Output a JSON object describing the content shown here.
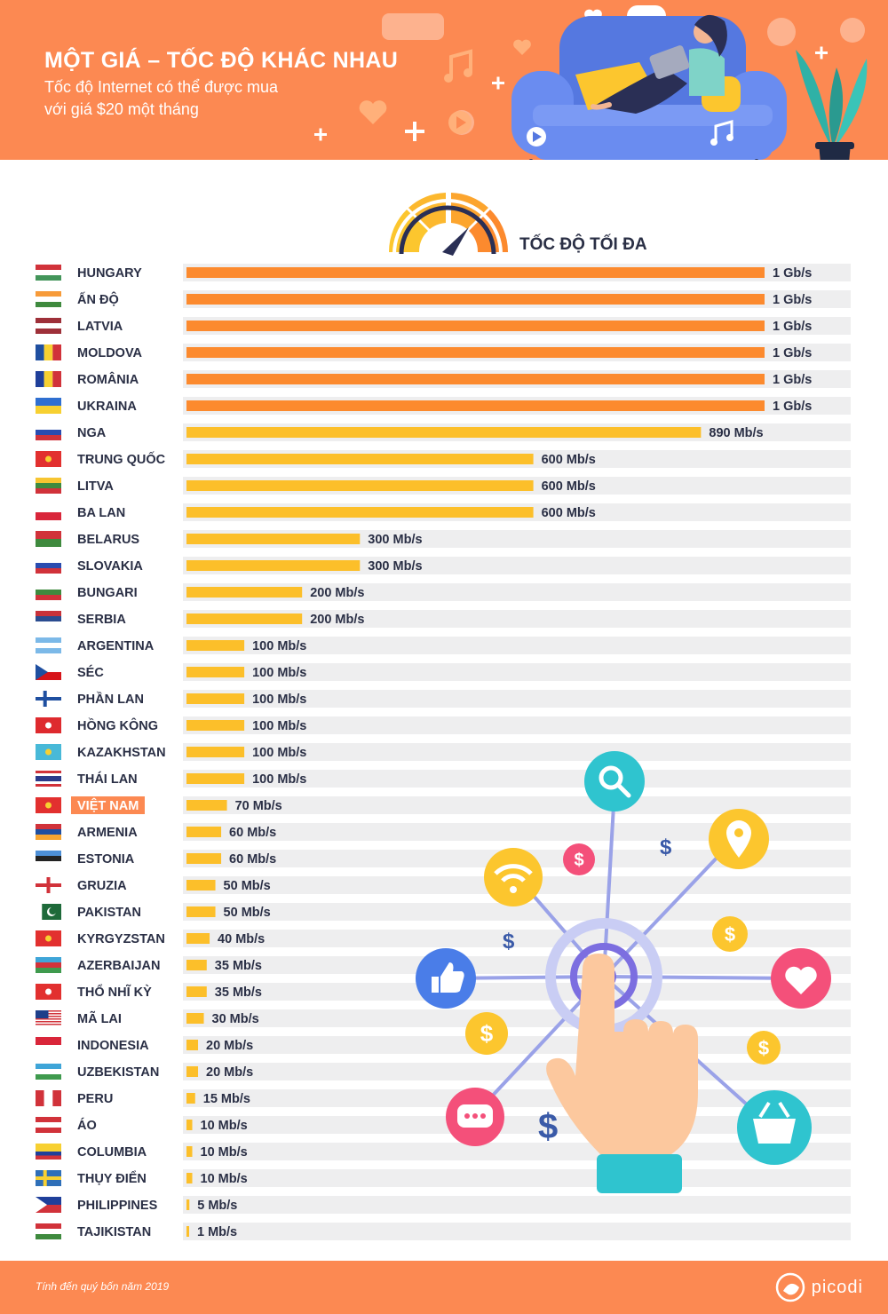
{
  "header": {
    "title": "MỘT GIÁ – TỐC ĐỘ KHÁC NHAU",
    "subtitle_line1": "Tốc độ Internet có thể được mua",
    "subtitle_line2": "với giá $20 một tháng"
  },
  "footer": {
    "note": "Tính đến quý bốn năm 2019",
    "brand": "picodi"
  },
  "colors": {
    "header_bg": "#fc8952",
    "bar_orange": "#fc8a2e",
    "bar_yellow": "#fcbf2a",
    "track": "#eeeeef",
    "highlight": "#fc8952"
  },
  "chart_data": {
    "type": "bar",
    "orientation": "horizontal",
    "title": "TỐC ĐỘ TỐI ĐA",
    "unit": "Mb/s",
    "xlim": [
      0,
      1000
    ],
    "highlight": "VIỆT NAM",
    "categories": [
      "HUNGARY",
      "ẤN ĐỘ",
      "LATVIA",
      "MOLDOVA",
      "ROMÂNIA",
      "UKRAINA",
      "NGA",
      "TRUNG QUỐC",
      "LITVA",
      "BA LAN",
      "BELARUS",
      "SLOVAKIA",
      "BUNGARI",
      "SERBIA",
      "ARGENTINA",
      "SÉC",
      "PHẦN LAN",
      "HỒNG KÔNG",
      "KAZAKHSTAN",
      "THÁI LAN",
      "VIỆT NAM",
      "ARMENIA",
      "ESTONIA",
      "GRUZIA",
      "PAKISTAN",
      "KYRGYZSTAN",
      "AZERBAIJAN",
      "THỔ NHĨ KỲ",
      "MÃ LAI",
      "INDONESIA",
      "UZBEKISTAN",
      "PERU",
      "ÁO",
      "COLUMBIA",
      "THỤY ĐIỂN",
      "PHILIPPINES",
      "TAJIKISTAN"
    ],
    "values": [
      1000,
      1000,
      1000,
      1000,
      1000,
      1000,
      890,
      600,
      600,
      600,
      300,
      300,
      200,
      200,
      100,
      100,
      100,
      100,
      100,
      100,
      70,
      60,
      60,
      50,
      50,
      40,
      35,
      35,
      30,
      20,
      20,
      15,
      10,
      10,
      10,
      5,
      1
    ],
    "value_labels": [
      "1 Gb/s",
      "1 Gb/s",
      "1 Gb/s",
      "1 Gb/s",
      "1 Gb/s",
      "1 Gb/s",
      "890 Mb/s",
      "600 Mb/s",
      "600 Mb/s",
      "600 Mb/s",
      "300 Mb/s",
      "300 Mb/s",
      "200 Mb/s",
      "200 Mb/s",
      "100 Mb/s",
      "100 Mb/s",
      "100 Mb/s",
      "100 Mb/s",
      "100 Mb/s",
      "100 Mb/s",
      "70 Mb/s",
      "60 Mb/s",
      "60 Mb/s",
      "50 Mb/s",
      "50 Mb/s",
      "40 Mb/s",
      "35 Mb/s",
      "35 Mb/s",
      "30 Mb/s",
      "20 Mb/s",
      "20 Mb/s",
      "15 Mb/s",
      "10 Mb/s",
      "10 Mb/s",
      "10 Mb/s",
      "5 Mb/s",
      "1 Mb/s"
    ],
    "flags": [
      {
        "kind": "h",
        "colors": [
          "#d1323a",
          "#ffffff",
          "#43955a"
        ]
      },
      {
        "kind": "h",
        "colors": [
          "#f79b39",
          "#ffffff",
          "#3f8a3e"
        ]
      },
      {
        "kind": "h",
        "colors": [
          "#9e3039",
          "#ffffff",
          "#9e3039"
        ]
      },
      {
        "kind": "v",
        "colors": [
          "#1f4fa0",
          "#f7d031",
          "#d1323a"
        ]
      },
      {
        "kind": "v",
        "colors": [
          "#1f3f9a",
          "#f7d031",
          "#d1323a"
        ]
      },
      {
        "kind": "h2",
        "colors": [
          "#2f6fd0",
          "#f7d031"
        ]
      },
      {
        "kind": "h",
        "colors": [
          "#ffffff",
          "#2a4cb0",
          "#d1323a"
        ]
      },
      {
        "kind": "solid",
        "colors": [
          "#e2302f",
          "#f7d031"
        ]
      },
      {
        "kind": "h",
        "colors": [
          "#f7c531",
          "#3f8a3e",
          "#d1323a"
        ]
      },
      {
        "kind": "h2",
        "colors": [
          "#ffffff",
          "#d9263a"
        ]
      },
      {
        "kind": "h2",
        "colors": [
          "#d1323a",
          "#3f8a3e"
        ]
      },
      {
        "kind": "h",
        "colors": [
          "#ffffff",
          "#2a4cb0",
          "#d1323a"
        ]
      },
      {
        "kind": "h",
        "colors": [
          "#ffffff",
          "#3f8a3e",
          "#d1323a"
        ]
      },
      {
        "kind": "h",
        "colors": [
          "#c8323a",
          "#2a4c90",
          "#ffffff"
        ]
      },
      {
        "kind": "h",
        "colors": [
          "#7cb9e8",
          "#ffffff",
          "#7cb9e8"
        ]
      },
      {
        "kind": "czech",
        "colors": [
          "#ffffff",
          "#d7141a",
          "#1f4fa0"
        ]
      },
      {
        "kind": "nordic",
        "colors": [
          "#ffffff",
          "#1f4fa0"
        ]
      },
      {
        "kind": "solid",
        "colors": [
          "#de2a2e",
          "#ffffff"
        ]
      },
      {
        "kind": "solid",
        "colors": [
          "#48b9d8",
          "#f7d031"
        ]
      },
      {
        "kind": "thai",
        "colors": [
          "#d1323a",
          "#ffffff",
          "#2a3a8a"
        ]
      },
      {
        "kind": "solid",
        "colors": [
          "#e2302f",
          "#f7d031"
        ]
      },
      {
        "kind": "h",
        "colors": [
          "#d1323a",
          "#1f4fa0",
          "#f7a531"
        ]
      },
      {
        "kind": "h",
        "colors": [
          "#4d8fd6",
          "#222222",
          "#ffffff"
        ]
      },
      {
        "kind": "cross",
        "colors": [
          "#ffffff",
          "#d1323a"
        ]
      },
      {
        "kind": "pak",
        "colors": [
          "#ffffff",
          "#1e6a3a"
        ]
      },
      {
        "kind": "solid",
        "colors": [
          "#e2302f",
          "#f7d031"
        ]
      },
      {
        "kind": "h",
        "colors": [
          "#3fa5d8",
          "#d1323a",
          "#3f9a4e"
        ]
      },
      {
        "kind": "solid",
        "colors": [
          "#e2302f",
          "#ffffff"
        ]
      },
      {
        "kind": "mys",
        "colors": [
          "#d1323a",
          "#ffffff",
          "#1f3f8a"
        ]
      },
      {
        "kind": "h2",
        "colors": [
          "#d9263a",
          "#ffffff"
        ]
      },
      {
        "kind": "h",
        "colors": [
          "#3fa5d8",
          "#ffffff",
          "#3f9a4e"
        ]
      },
      {
        "kind": "v",
        "colors": [
          "#d1323a",
          "#ffffff",
          "#d1323a"
        ]
      },
      {
        "kind": "h",
        "colors": [
          "#d1323a",
          "#ffffff",
          "#d1323a"
        ]
      },
      {
        "kind": "hcol",
        "colors": [
          "#f7d031",
          "#1f3f9a",
          "#d1323a"
        ]
      },
      {
        "kind": "nordic",
        "colors": [
          "#2f6fb8",
          "#f7d031"
        ]
      },
      {
        "kind": "phl",
        "colors": [
          "#1f3f9a",
          "#d1323a",
          "#ffffff"
        ]
      },
      {
        "kind": "h",
        "colors": [
          "#d1323a",
          "#ffffff",
          "#3f8a3e"
        ]
      }
    ]
  }
}
